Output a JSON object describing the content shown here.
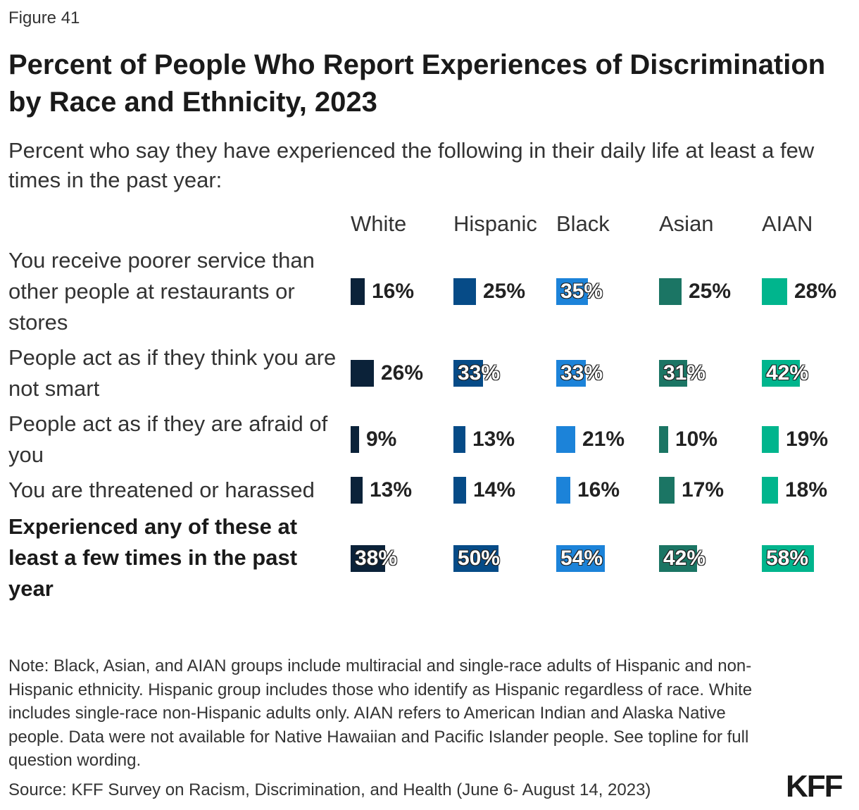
{
  "figure_label": "Figure 41",
  "title": "Percent of People Who Report Experiences of Discrimination by Race and Ethnicity, 2023",
  "subtitle": "Percent who say they have experienced the following in their daily life at least a few times in the past year:",
  "note": "Note: Black, Asian, and AIAN groups include multiracial and single-race adults of Hispanic and non-Hispanic ethnicity. Hispanic group includes those who identify as Hispanic regardless of race. White includes single-race non-Hispanic adults only. AIAN refers to American Indian and Alaska Native people. Data were not available for Native Hawaiian and Pacific Islander people. See topline for full question wording.",
  "source": "Source: KFF Survey on Racism, Discrimination, and Health (June 6- August 14, 2023)",
  "logo": "KFF",
  "chart_data": {
    "type": "table",
    "columns": [
      "White",
      "Hispanic",
      "Black",
      "Asian",
      "AIAN"
    ],
    "colors": [
      "#0b2239",
      "#064b87",
      "#1c83d9",
      "#1b7564",
      "#00b58d"
    ],
    "value_format": "percent",
    "rows": [
      {
        "label": "You receive poorer service than other people at restaurants or stores",
        "bold": false,
        "values": [
          16,
          25,
          35,
          25,
          28
        ]
      },
      {
        "label": "People act as if they think you are not smart",
        "bold": false,
        "values": [
          26,
          33,
          33,
          31,
          42
        ]
      },
      {
        "label": "People act as if they are afraid of you",
        "bold": false,
        "values": [
          9,
          13,
          21,
          10,
          19
        ]
      },
      {
        "label": "You are threatened or harassed",
        "bold": false,
        "values": [
          13,
          14,
          16,
          17,
          18
        ]
      },
      {
        "label": "Experienced any of these at least a few times in the past year",
        "bold": true,
        "values": [
          38,
          50,
          54,
          42,
          58
        ]
      }
    ]
  }
}
